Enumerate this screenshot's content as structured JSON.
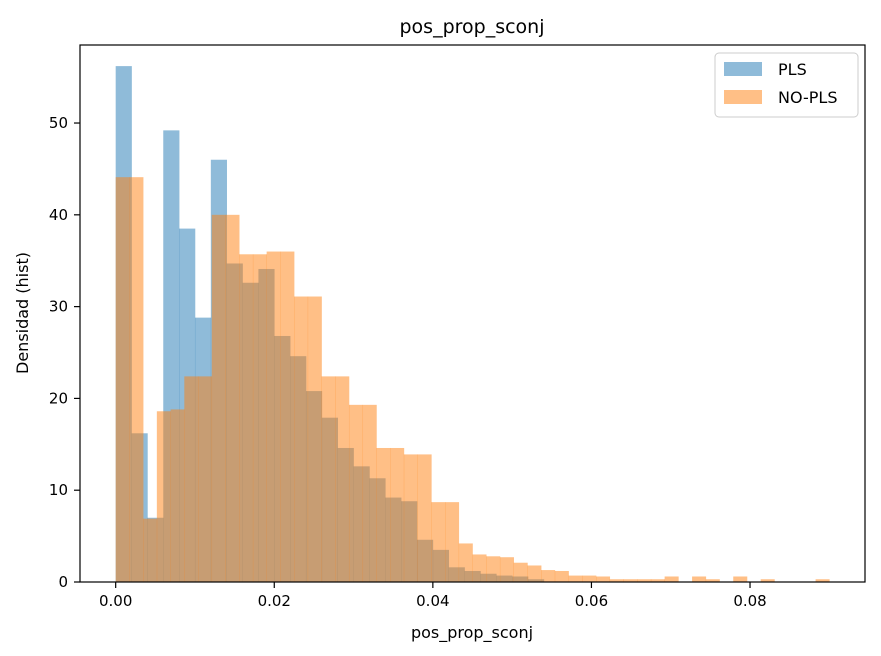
{
  "chart_data": {
    "type": "bar",
    "title": "pos_prop_sconj",
    "xlabel": "pos_prop_sconj",
    "ylabel": "Densidad (hist)",
    "xlim": [
      -0.0045,
      0.0945
    ],
    "ylim": [
      0,
      58.5
    ],
    "xticks": [
      "0.00",
      "0.02",
      "0.04",
      "0.06",
      "0.08"
    ],
    "xtick_values": [
      0,
      0.02,
      0.04,
      0.06,
      0.08
    ],
    "yticks": [
      "0",
      "10",
      "20",
      "30",
      "40",
      "50"
    ],
    "ytick_values": [
      0,
      10,
      20,
      30,
      40,
      50
    ],
    "grid": false,
    "legend_position": "top-right",
    "series": [
      {
        "name": "PLS",
        "color": "#1f77b4",
        "opacity": 0.5,
        "bin_start": 0,
        "bin_width": 0.002,
        "values": [
          56.2,
          16.2,
          7.0,
          49.2,
          38.5,
          28.8,
          46.0,
          34.7,
          32.6,
          34.1,
          26.8,
          24.6,
          20.8,
          17.9,
          14.6,
          12.6,
          11.3,
          9.2,
          8.8,
          4.6,
          3.5,
          1.6,
          1.2,
          0.9,
          0.7,
          0.6,
          0.3,
          0,
          0,
          0,
          0
        ]
      },
      {
        "name": "NO-PLS",
        "color": "#ff7f0e",
        "opacity": 0.5,
        "bin_start": 0,
        "bin_width": 0.002,
        "values": [
          44.1,
          44.1,
          6.9,
          18.6,
          18.8,
          22.4,
          22.4,
          40.0,
          40.0,
          35.7,
          35.7,
          36.0,
          36.0,
          31.1,
          31.1,
          22.4,
          22.4,
          19.3,
          19.3,
          14.6,
          14.6,
          13.9,
          13.9,
          8.7,
          8.7,
          4.2,
          3.0,
          2.8,
          2.7,
          2.1,
          1.8,
          1.3,
          1.2,
          0.7,
          0.7,
          0.6,
          0.3,
          0.3,
          0.3,
          0.3,
          0.6,
          0,
          0.6,
          0.3,
          0,
          0.6,
          0,
          0.3,
          0,
          0,
          0,
          0.3
        ],
        "bin_width_override": 0.0017307692
      }
    ]
  }
}
